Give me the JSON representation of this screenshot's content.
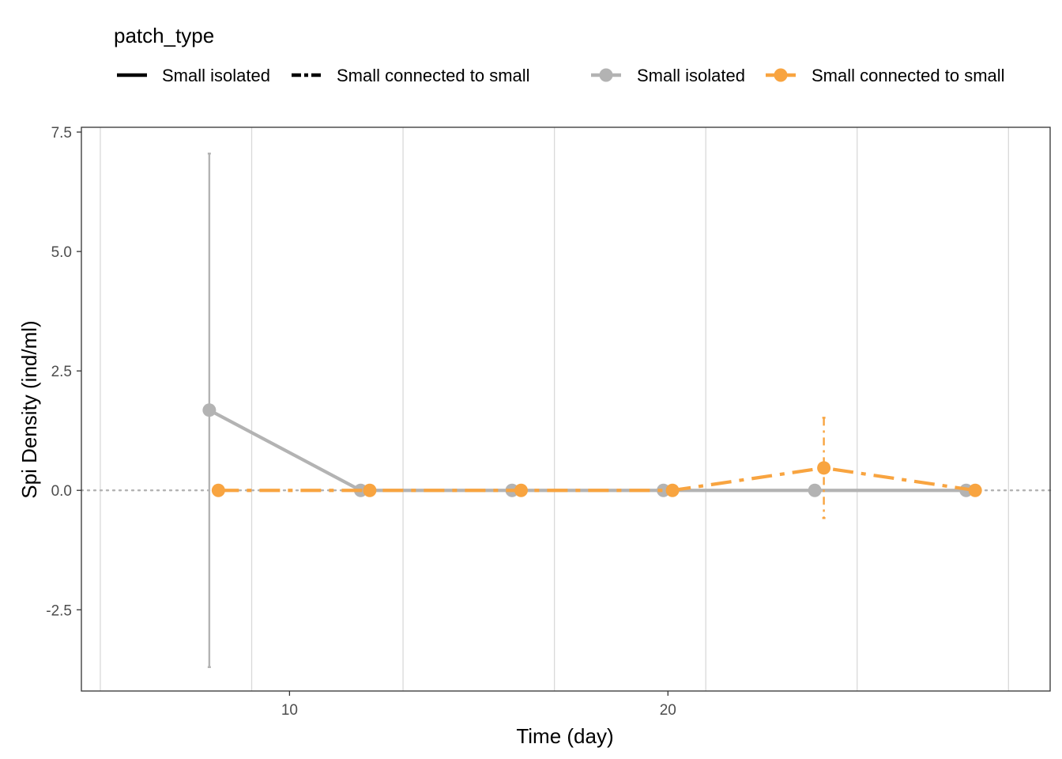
{
  "chart_data": {
    "type": "line",
    "title": "",
    "xlabel": "Time (day)",
    "ylabel": "Spi Density (ind/ml)",
    "xlim": [
      4.5,
      30.1
    ],
    "ylim": [
      -4.2,
      7.6
    ],
    "x_ticks": [
      10,
      20
    ],
    "y_ticks": [
      -2.5,
      0.0,
      2.5,
      5.0,
      7.5
    ],
    "x_tick_labels": [
      "10",
      "20"
    ],
    "y_tick_labels": [
      "-2.5",
      "0.0",
      "2.5",
      "5.0",
      "7.5"
    ],
    "grid": "vertical",
    "reference_line": {
      "y": 0,
      "style": "dotted",
      "color": "#b3b3b3"
    },
    "legend": {
      "placement": "top",
      "title": "patch_type",
      "linetype_entries": [
        "Small isolated",
        "Small connected to small"
      ],
      "color_entries": [
        "Small isolated",
        "Small connected to small"
      ]
    },
    "series": [
      {
        "name": "Small isolated",
        "color": "#b3b3b3",
        "linetype": "solid",
        "x": [
          8,
          12,
          16,
          20,
          24,
          28
        ],
        "y": [
          1.68,
          0.0,
          0.0,
          0.0,
          0.0,
          0.0
        ],
        "err_low": [
          -3.7,
          0.0,
          0.0,
          0.0,
          0.0,
          0.0
        ],
        "err_high": [
          7.05,
          0.0,
          0.0,
          0.0,
          0.0,
          0.0
        ]
      },
      {
        "name": "Small connected to small",
        "color": "#f8a440",
        "linetype": "dashdot",
        "x": [
          8,
          12,
          16,
          20,
          24,
          28
        ],
        "y": [
          0.0,
          0.0,
          0.0,
          0.0,
          0.47,
          0.0
        ],
        "err_low": [
          0.0,
          0.0,
          0.0,
          0.0,
          -0.58,
          0.0
        ],
        "err_high": [
          0.0,
          0.0,
          0.0,
          0.0,
          1.52,
          0.0
        ]
      }
    ]
  }
}
